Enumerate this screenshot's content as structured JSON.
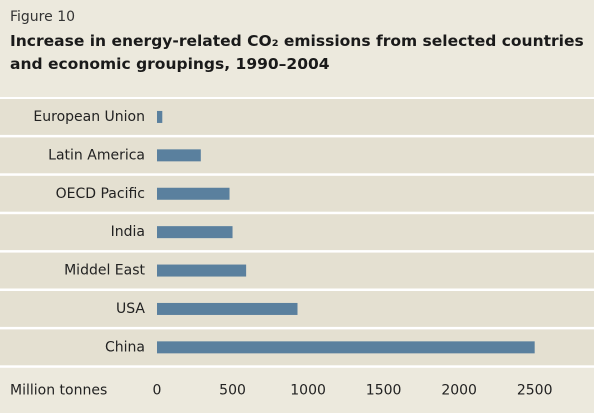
{
  "chart_data": {
    "type": "barh",
    "figure_label": "Figure 10",
    "title": "Increase in energy-related CO₂ emissions from selected countries and economic groupings, 1990–2004",
    "categories": [
      "European Union",
      "Latin America",
      "OECD Pacific",
      "India",
      "Middel East",
      "USA",
      "China"
    ],
    "values": [
      35,
      290,
      480,
      500,
      590,
      930,
      2500
    ],
    "color": "#5a809e",
    "xlabel": "Million tonnes",
    "xlim": [
      0,
      2800
    ],
    "xticks": [
      0,
      500,
      1000,
      1500,
      2000,
      2500
    ],
    "grid": false
  }
}
